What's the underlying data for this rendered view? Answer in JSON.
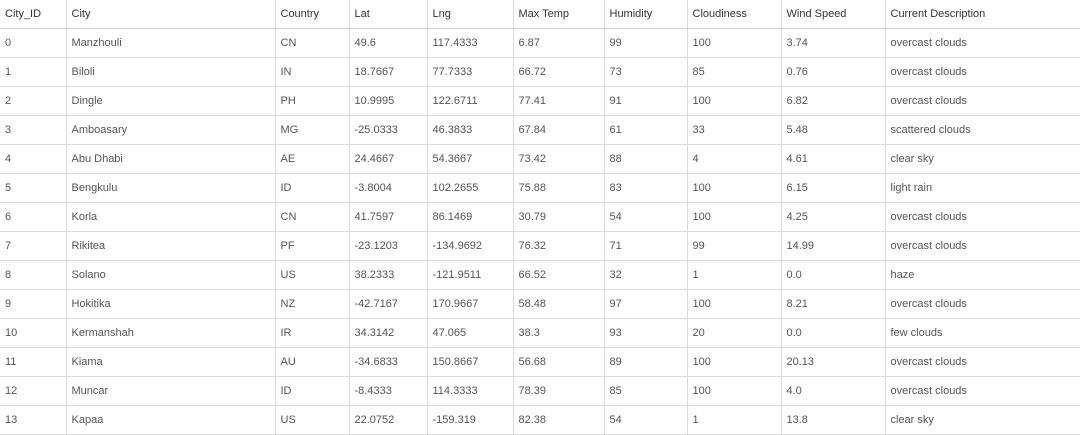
{
  "table": {
    "columns": [
      "City_ID",
      "City",
      "Country",
      "Lat",
      "Lng",
      "Max Temp",
      "Humidity",
      "Cloudiness",
      "Wind Speed",
      "Current Description"
    ],
    "rows": [
      [
        "0",
        "Manzhouli",
        "CN",
        "49.6",
        "117.4333",
        "6.87",
        "99",
        "100",
        "3.74",
        "overcast clouds"
      ],
      [
        "1",
        "Biloli",
        "IN",
        "18.7667",
        "77.7333",
        "66.72",
        "73",
        "85",
        "0.76",
        "overcast clouds"
      ],
      [
        "2",
        "Dingle",
        "PH",
        "10.9995",
        "122.6711",
        "77.41",
        "91",
        "100",
        "6.82",
        "overcast clouds"
      ],
      [
        "3",
        "Amboasary",
        "MG",
        "-25.0333",
        "46.3833",
        "67.84",
        "61",
        "33",
        "5.48",
        "scattered clouds"
      ],
      [
        "4",
        "Abu Dhabi",
        "AE",
        "24.4667",
        "54.3667",
        "73.42",
        "88",
        "4",
        "4.61",
        "clear sky"
      ],
      [
        "5",
        "Bengkulu",
        "ID",
        "-3.8004",
        "102.2655",
        "75.88",
        "83",
        "100",
        "6.15",
        "light rain"
      ],
      [
        "6",
        "Korla",
        "CN",
        "41.7597",
        "86.1469",
        "30.79",
        "54",
        "100",
        "4.25",
        "overcast clouds"
      ],
      [
        "7",
        "Rikitea",
        "PF",
        "-23.1203",
        "-134.9692",
        "76.32",
        "71",
        "99",
        "14.99",
        "overcast clouds"
      ],
      [
        "8",
        "Solano",
        "US",
        "38.2333",
        "-121.9511",
        "66.52",
        "32",
        "1",
        "0.0",
        "haze"
      ],
      [
        "9",
        "Hokitika",
        "NZ",
        "-42.7167",
        "170.9667",
        "58.48",
        "97",
        "100",
        "8.21",
        "overcast clouds"
      ],
      [
        "10",
        "Kermanshah",
        "IR",
        "34.3142",
        "47.065",
        "38.3",
        "93",
        "20",
        "0.0",
        "few clouds"
      ],
      [
        "11",
        "Kiama",
        "AU",
        "-34.6833",
        "150.8667",
        "56.68",
        "89",
        "100",
        "20.13",
        "overcast clouds"
      ],
      [
        "12",
        "Muncar",
        "ID",
        "-8.4333",
        "114.3333",
        "78.39",
        "85",
        "100",
        "4.0",
        "overcast clouds"
      ],
      [
        "13",
        "Kapaa",
        "US",
        "22.0752",
        "-159.319",
        "82.38",
        "54",
        "1",
        "13.8",
        "clear sky"
      ]
    ]
  }
}
